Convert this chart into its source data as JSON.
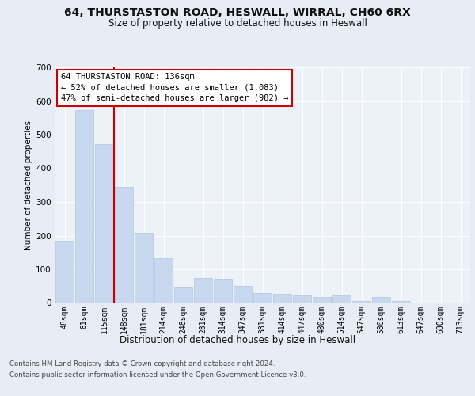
{
  "title1": "64, THURSTASTON ROAD, HESWALL, WIRRAL, CH60 6RX",
  "title2": "Size of property relative to detached houses in Heswall",
  "xlabel": "Distribution of detached houses by size in Heswall",
  "ylabel": "Number of detached properties",
  "footer1": "Contains HM Land Registry data © Crown copyright and database right 2024.",
  "footer2": "Contains public sector information licensed under the Open Government Licence v3.0.",
  "annotation_line1": "64 THURSTASTON ROAD: 136sqm",
  "annotation_line2": "← 52% of detached houses are smaller (1,083)",
  "annotation_line3": "47% of semi-detached houses are larger (982) →",
  "bar_color": "#c8d8ee",
  "bar_edge_color": "#b0c4de",
  "vline_color": "#cc0000",
  "bg_color": "#e8edf5",
  "plot_bg_color": "#edf1f8",
  "grid_color": "#ffffff",
  "categories": [
    "48sqm",
    "81sqm",
    "115sqm",
    "148sqm",
    "181sqm",
    "214sqm",
    "248sqm",
    "281sqm",
    "314sqm",
    "347sqm",
    "381sqm",
    "414sqm",
    "447sqm",
    "480sqm",
    "514sqm",
    "547sqm",
    "580sqm",
    "613sqm",
    "647sqm",
    "680sqm",
    "713sqm"
  ],
  "values": [
    185,
    572,
    472,
    345,
    208,
    132,
    46,
    75,
    72,
    50,
    30,
    26,
    22,
    17,
    22,
    5,
    17,
    5,
    0,
    0,
    0
  ],
  "vline_pos": 2.5,
  "ylim": [
    0,
    700
  ],
  "yticks": [
    0,
    100,
    200,
    300,
    400,
    500,
    600,
    700
  ],
  "title1_fontsize": 10,
  "title2_fontsize": 8.5,
  "ylabel_fontsize": 7.5,
  "xlabel_fontsize": 8.5,
  "tick_fontsize": 7,
  "footer_fontsize": 6.2,
  "ann_fontsize": 7.5
}
